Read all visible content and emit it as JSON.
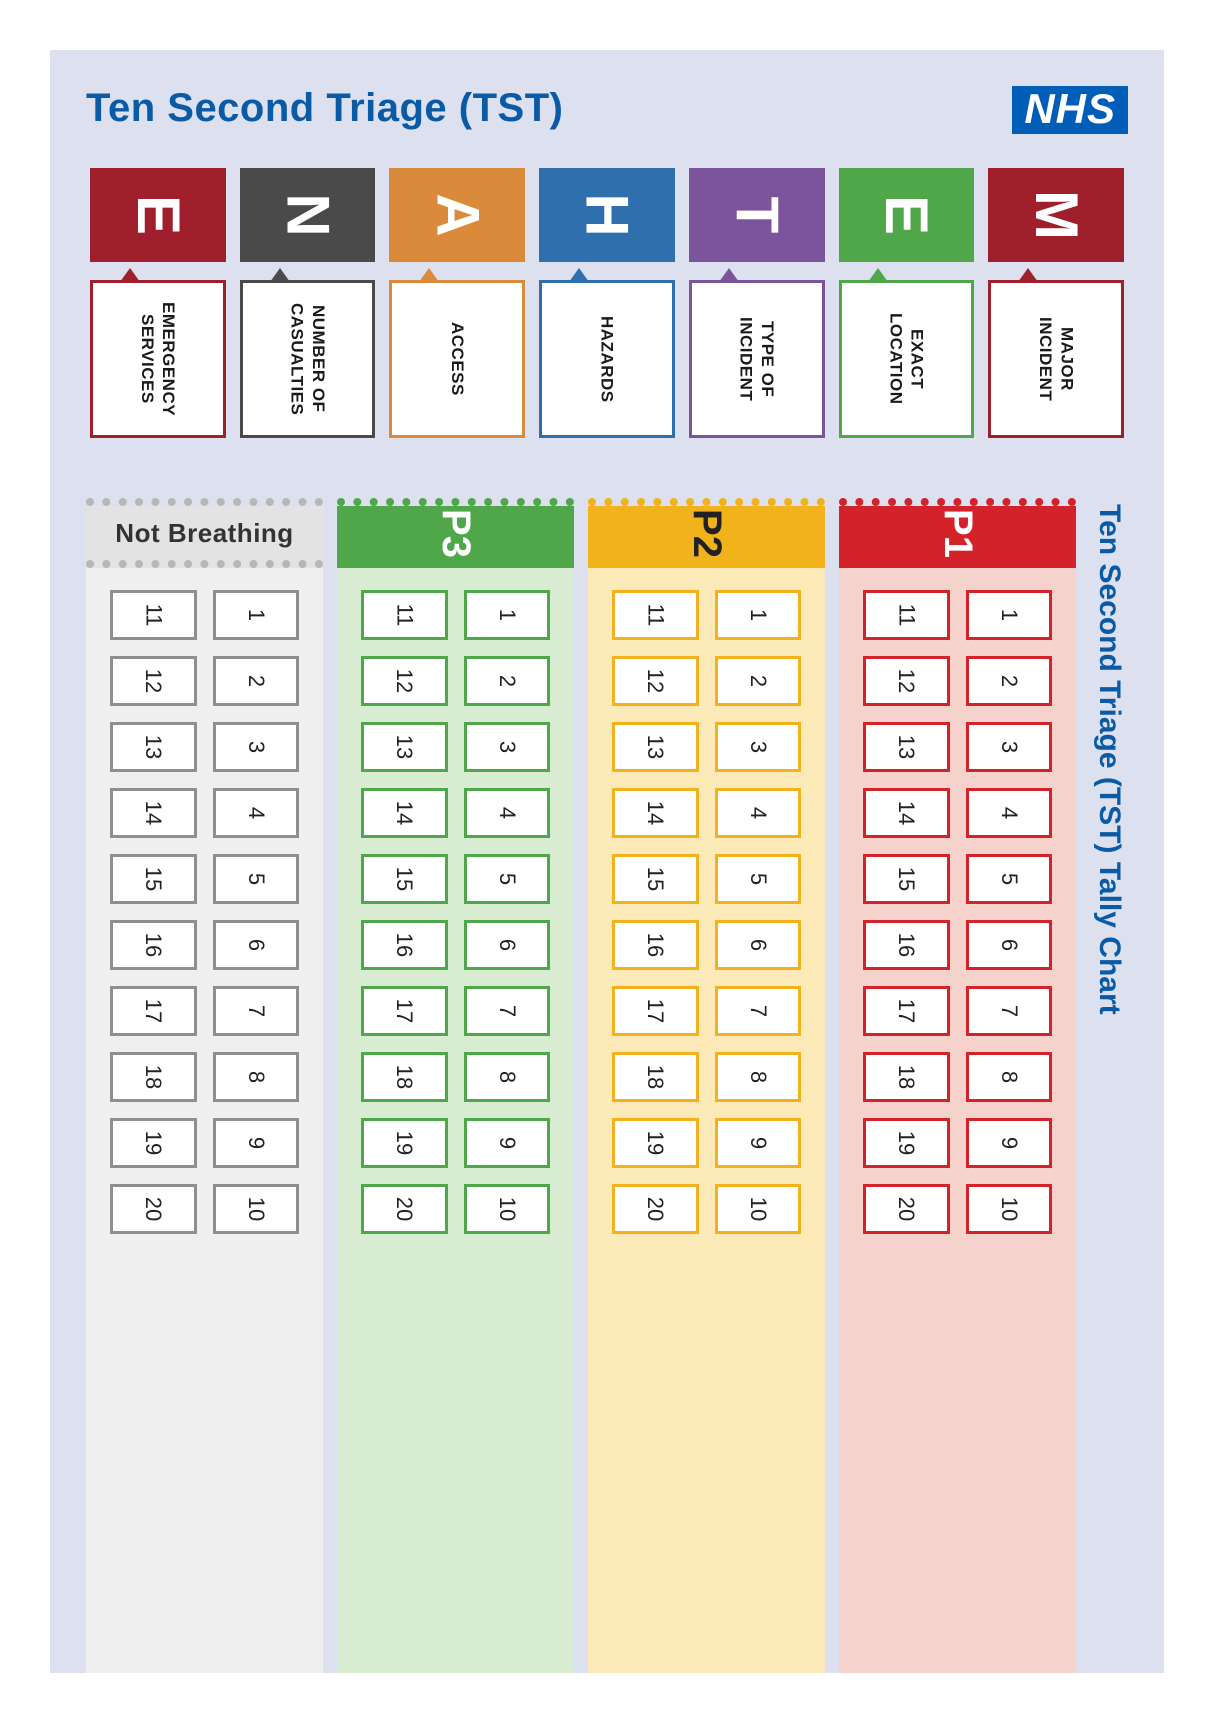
{
  "title": "Ten Second Triage (TST)",
  "logo_text": "NHS",
  "logo_bg": "#005eb8",
  "logo_fg": "#ffffff",
  "page_bg": "#dce0ef",
  "title_color": "#0a5aa6",
  "methane": [
    {
      "letter": "M",
      "desc": "MAJOR INCIDENT",
      "color": "#a01f2c"
    },
    {
      "letter": "E",
      "desc": "EXACT LOCATION",
      "color": "#4fa74a"
    },
    {
      "letter": "T",
      "desc": "TYPE OF INCIDENT",
      "color": "#7b549c"
    },
    {
      "letter": "H",
      "desc": "HAZARDS",
      "color": "#2f6fae"
    },
    {
      "letter": "A",
      "desc": "ACCESS",
      "color": "#d98a3a"
    },
    {
      "letter": "N",
      "desc": "NUMBER OF CASUALTIES",
      "color": "#4a4a4a"
    },
    {
      "letter": "E",
      "desc": "EMERGENCY SERVICES",
      "color": "#a01f2c"
    }
  ],
  "tally_side_title": "Ten Second Triage (TST) Tally Chart",
  "tally_columns": [
    {
      "id": "p1",
      "label": "P1",
      "header_bg": "#d4222a",
      "header_fg": "#ffffff",
      "body_bg": "#f6d2cc",
      "border": "#d4222a",
      "dotted": "#d4222a"
    },
    {
      "id": "p2",
      "label": "P2",
      "header_bg": "#f2b21b",
      "header_fg": "#222222",
      "body_bg": "#fbe9b8",
      "border": "#f2b21b",
      "dotted": "#f2b21b"
    },
    {
      "id": "p3",
      "label": "P3",
      "header_bg": "#4fa74a",
      "header_fg": "#ffffff",
      "body_bg": "#d7ecd1",
      "border": "#4fa74a",
      "dotted": "#4fa74a"
    },
    {
      "id": "nb",
      "label": "Not Breathing",
      "header_bg": "#e3e3e3",
      "header_fg": "#333333",
      "body_bg": "#efefef",
      "border": "#8f8f8f",
      "dotted": "#b7b7b7"
    }
  ],
  "tally_rows": [
    {
      "left": "1",
      "right": "11"
    },
    {
      "left": "2",
      "right": "12"
    },
    {
      "left": "3",
      "right": "13"
    },
    {
      "left": "4",
      "right": "14"
    },
    {
      "left": "5",
      "right": "15"
    },
    {
      "left": "6",
      "right": "16"
    },
    {
      "left": "7",
      "right": "17"
    },
    {
      "left": "8",
      "right": "18"
    },
    {
      "left": "9",
      "right": "19"
    },
    {
      "left": "10",
      "right": "20"
    }
  ]
}
